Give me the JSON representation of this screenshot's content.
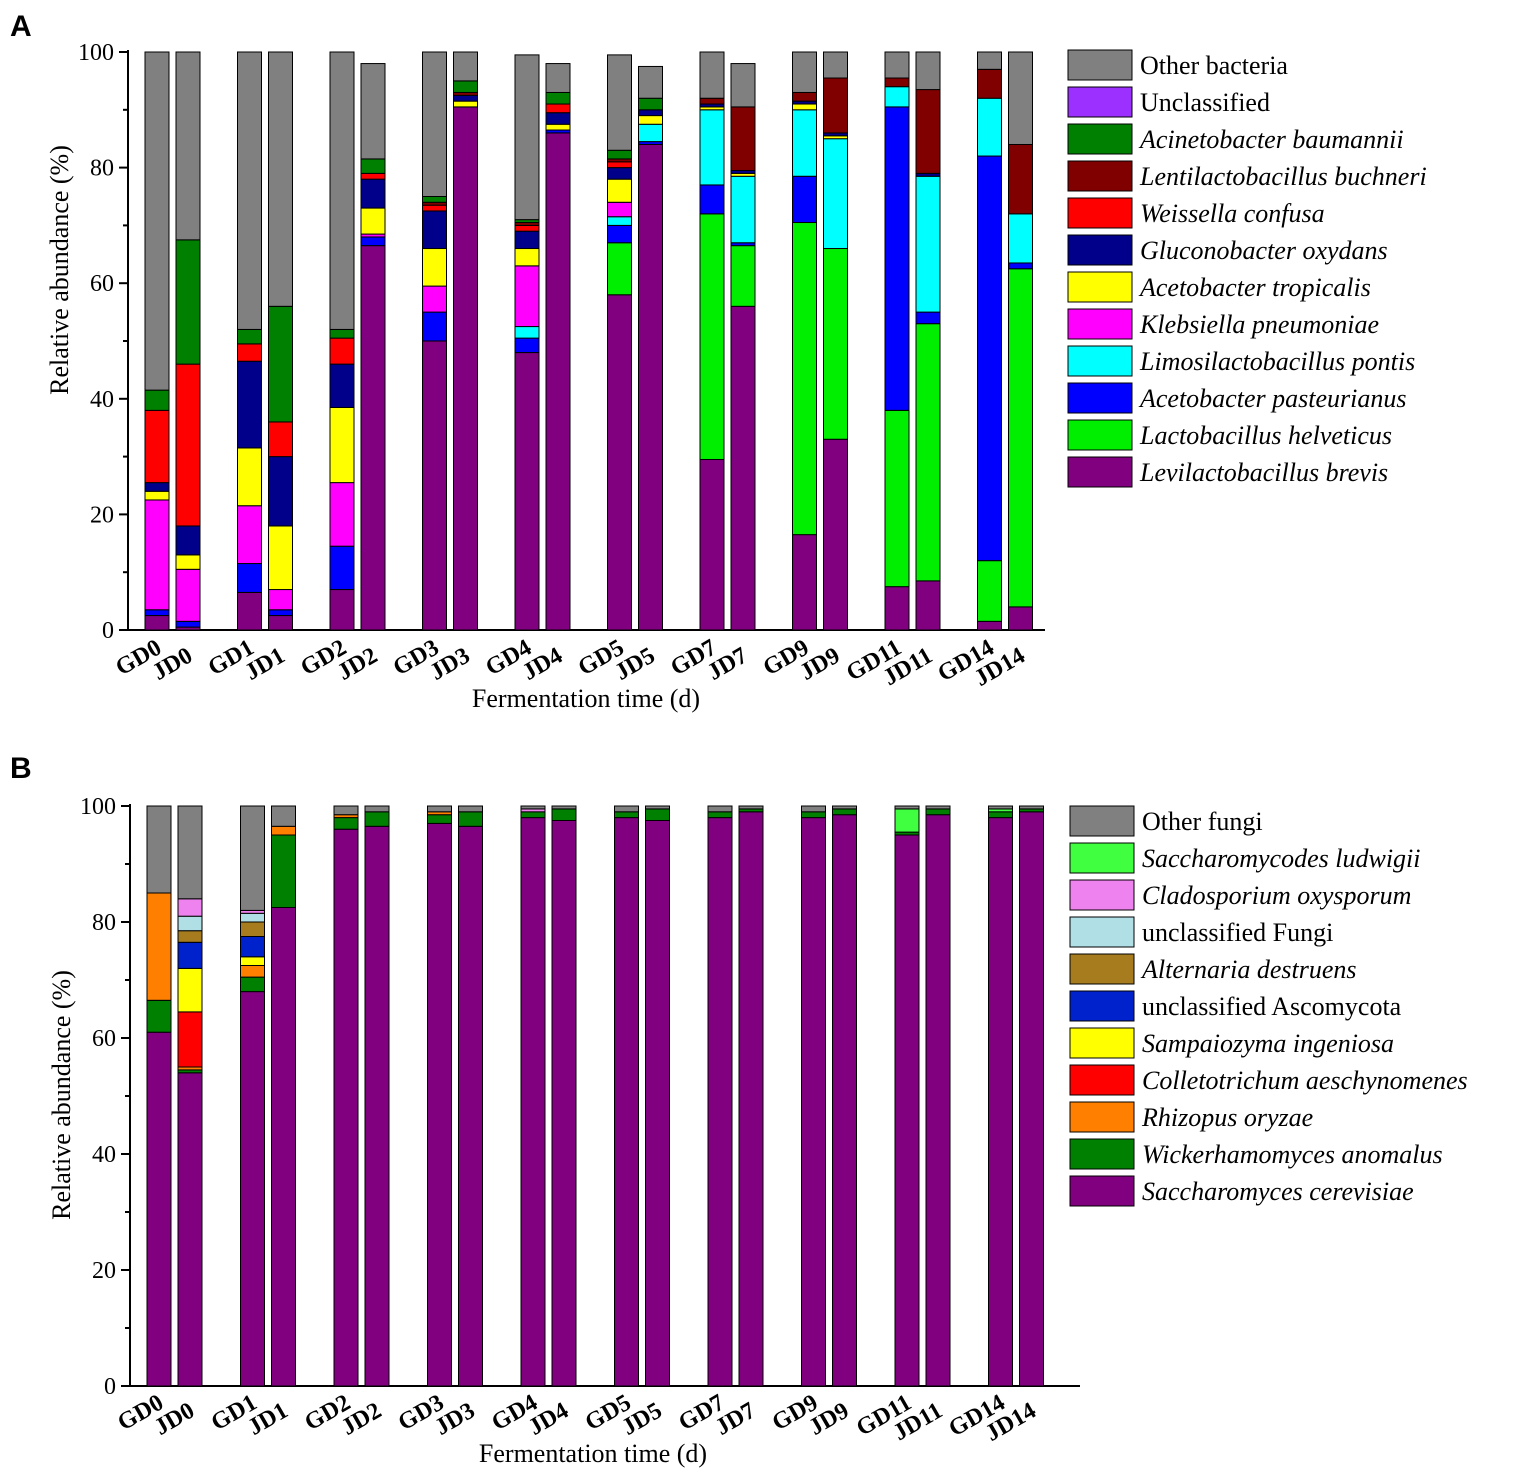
{
  "panels": [
    {
      "id": "A",
      "letter": "A",
      "chart_data": {
        "type": "bar",
        "stacked": true,
        "xlabel": "Fermentation time (d)",
        "ylabel": "Relative abundance (%)",
        "ylim": [
          0,
          100
        ],
        "yticks": [
          0,
          20,
          40,
          60,
          80,
          100
        ],
        "categories": [
          "GD0",
          "JD0",
          "GD1",
          "JD1",
          "GD2",
          "JD2",
          "GD3",
          "JD3",
          "GD4",
          "JD4",
          "GD5",
          "JD5",
          "GD7",
          "JD7",
          "GD9",
          "JD9",
          "GD11",
          "JD11",
          "GD14",
          "JD14"
        ],
        "series": [
          {
            "name": "Levilactobacillus brevis",
            "italic": true,
            "color": "#800080",
            "values": [
              2.5,
              0.5,
              6.5,
              2.5,
              7,
              66.5,
              50,
              90.5,
              48,
              86,
              58,
              84,
              29.5,
              56,
              16.5,
              33,
              7.5,
              8.5,
              1.5,
              4
            ]
          },
          {
            "name": "Lactobacillus helveticus",
            "italic": true,
            "color": "#00ee00",
            "values": [
              0,
              0,
              0,
              0,
              0,
              0,
              0,
              0,
              0,
              0,
              9,
              0,
              42.5,
              10.5,
              54,
              33,
              30.5,
              44.5,
              10.5,
              58.5
            ]
          },
          {
            "name": "Acetobacter pasteurianus",
            "italic": true,
            "color": "#0000ff",
            "values": [
              1,
              1,
              5,
              1,
              7.5,
              1.5,
              5,
              0,
              2.5,
              0.5,
              3,
              0.5,
              5,
              0.5,
              8,
              0,
              52.5,
              2,
              70,
              1
            ]
          },
          {
            "name": "Limosilactobacillus pontis",
            "italic": true,
            "color": "#00ffff",
            "values": [
              0,
              0,
              0,
              0,
              0,
              0,
              0,
              0,
              2,
              0,
              1.5,
              3,
              13,
              11.5,
              11.5,
              19,
              3.5,
              23.5,
              10,
              8.5
            ]
          },
          {
            "name": "Klebsiella pneumoniae",
            "italic": true,
            "color": "#ff00ff",
            "values": [
              19,
              9,
              10,
              3.5,
              11,
              0.5,
              4.5,
              0,
              10.5,
              0,
              2.5,
              0,
              0,
              0,
              0,
              0,
              0,
              0,
              0,
              0
            ]
          },
          {
            "name": "Acetobacter tropicalis",
            "italic": true,
            "color": "#ffff00",
            "values": [
              1.5,
              2.5,
              10,
              11,
              13,
              4.5,
              6.5,
              1,
              3,
              1,
              4,
              1.5,
              0.5,
              0.5,
              1,
              0.5,
              0,
              0,
              0,
              0
            ]
          },
          {
            "name": "Gluconobacter oxydans",
            "italic": true,
            "color": "#00008b",
            "values": [
              1.5,
              5,
              15,
              12,
              7.5,
              5,
              6.5,
              1,
              3,
              2,
              2,
              1,
              0.5,
              0.5,
              0.5,
              0.5,
              0,
              0.5,
              0,
              0
            ]
          },
          {
            "name": "Weissella confusa",
            "italic": true,
            "color": "#ff0000",
            "values": [
              12.5,
              28,
              3,
              6,
              4.5,
              1,
              1,
              0,
              1,
              1.5,
              1,
              0,
              0,
              0,
              0,
              0,
              0,
              0,
              0,
              0
            ]
          },
          {
            "name": "Lentilactobacillus buchneri",
            "italic": true,
            "color": "#800000",
            "values": [
              0,
              0,
              0,
              0,
              0,
              0,
              0.5,
              0.5,
              0.5,
              0,
              0.5,
              0,
              1,
              11,
              1.5,
              9.5,
              1.5,
              14.5,
              5,
              12
            ]
          },
          {
            "name": "Acinetobacter baumannii",
            "italic": true,
            "color": "#008000",
            "values": [
              3.5,
              21.5,
              2.5,
              20,
              1.5,
              2.5,
              1,
              2,
              0.5,
              2,
              1.5,
              2,
              0,
              0,
              0,
              0,
              0,
              0,
              0,
              0
            ]
          },
          {
            "name": "Unclassified",
            "italic": false,
            "color": "#9b30ff",
            "values": [
              0,
              0,
              0,
              0,
              0,
              0,
              0,
              0,
              0,
              0,
              0,
              0,
              0,
              0,
              0,
              0,
              0,
              0,
              0,
              0
            ]
          },
          {
            "name": "Other bacteria",
            "italic": false,
            "color": "#808080",
            "values": [
              58.5,
              32.5,
              48,
              44,
              48,
              16.5,
              25,
              5,
              28.5,
              5,
              16.5,
              5.5,
              8,
              7.5,
              7,
              4.5,
              4.5,
              6.5,
              3,
              16
            ]
          }
        ]
      }
    },
    {
      "id": "B",
      "letter": "B",
      "chart_data": {
        "type": "bar",
        "stacked": true,
        "xlabel": "Fermentation time (d)",
        "ylabel": "Relative abundance (%)",
        "ylim": [
          0,
          100
        ],
        "yticks": [
          0,
          20,
          40,
          60,
          80,
          100
        ],
        "categories": [
          "GD0",
          "JD0",
          "GD1",
          "JD1",
          "GD2",
          "JD2",
          "GD3",
          "JD3",
          "GD4",
          "JD4",
          "GD5",
          "JD5",
          "GD7",
          "JD7",
          "GD9",
          "JD9",
          "GD11",
          "JD11",
          "GD14",
          "JD14"
        ],
        "series": [
          {
            "name": "Saccharomyces cerevisiae",
            "italic": true,
            "color": "#800080",
            "values": [
              61,
              54,
              68,
              82.5,
              96,
              96.5,
              97,
              96.5,
              98,
              97.5,
              98,
              97.5,
              98,
              99,
              98,
              98.5,
              95,
              98.5,
              98,
              99
            ]
          },
          {
            "name": "Wickerhamomyces anomalus",
            "italic": true,
            "color": "#008000",
            "values": [
              5.5,
              0.5,
              2.5,
              12.5,
              2,
              2.5,
              1.5,
              2.5,
              1,
              2,
              1,
              2,
              1,
              0.5,
              1,
              1,
              0.5,
              1,
              1,
              0.5
            ]
          },
          {
            "name": "Rhizopus oryzae",
            "italic": true,
            "color": "#ff8000",
            "values": [
              18.5,
              0.5,
              2,
              1.5,
              0.5,
              0,
              0.5,
              0,
              0,
              0,
              0,
              0,
              0,
              0,
              0,
              0,
              0,
              0,
              0,
              0
            ]
          },
          {
            "name": "Colletotrichum aeschynomenes",
            "italic": true,
            "color": "#ff0000",
            "values": [
              0,
              9.5,
              0,
              0,
              0,
              0,
              0,
              0,
              0,
              0,
              0,
              0,
              0,
              0,
              0,
              0,
              0,
              0,
              0,
              0
            ]
          },
          {
            "name": "Sampaiozyma ingeniosa",
            "italic": true,
            "color": "#ffff00",
            "values": [
              0,
              7.5,
              1.5,
              0,
              0,
              0,
              0,
              0,
              0,
              0,
              0,
              0,
              0,
              0,
              0,
              0,
              0,
              0,
              0,
              0
            ]
          },
          {
            "name": "unclassified Ascomycota",
            "italic": false,
            "color": "#0022cc",
            "values": [
              0,
              4.5,
              3.5,
              0,
              0,
              0,
              0,
              0,
              0,
              0,
              0,
              0,
              0,
              0,
              0,
              0,
              0,
              0,
              0,
              0
            ]
          },
          {
            "name": "Alternaria destruens",
            "italic": true,
            "color": "#a67c1f",
            "values": [
              0,
              2,
              2.5,
              0,
              0,
              0,
              0,
              0,
              0,
              0,
              0,
              0,
              0,
              0,
              0,
              0,
              0,
              0,
              0,
              0
            ]
          },
          {
            "name": "unclassified Fungi",
            "italic": false,
            "color": "#b0e0e6",
            "values": [
              0,
              2.5,
              1.5,
              0,
              0,
              0,
              0,
              0,
              0,
              0,
              0,
              0,
              0,
              0,
              0,
              0,
              0,
              0,
              0,
              0
            ]
          },
          {
            "name": "Cladosporium oxysporum",
            "italic": true,
            "color": "#ee82ee",
            "values": [
              0,
              3,
              0.5,
              0,
              0,
              0,
              0,
              0,
              0.5,
              0,
              0,
              0,
              0,
              0,
              0,
              0,
              0,
              0,
              0,
              0
            ]
          },
          {
            "name": "Saccharomycodes ludwigii",
            "italic": true,
            "color": "#40ff40",
            "values": [
              0,
              0,
              0,
              0,
              0,
              0,
              0,
              0,
              0,
              0,
              0,
              0,
              0,
              0,
              0,
              0,
              4,
              0,
              0.5,
              0
            ]
          },
          {
            "name": "Other fungi",
            "italic": false,
            "color": "#808080",
            "values": [
              15,
              16,
              18,
              3.5,
              1.5,
              1,
              1,
              1,
              0.5,
              0.5,
              1,
              0.5,
              1,
              0.5,
              1,
              0.5,
              0.5,
              0.5,
              0.5,
              0.5
            ]
          }
        ]
      }
    }
  ]
}
